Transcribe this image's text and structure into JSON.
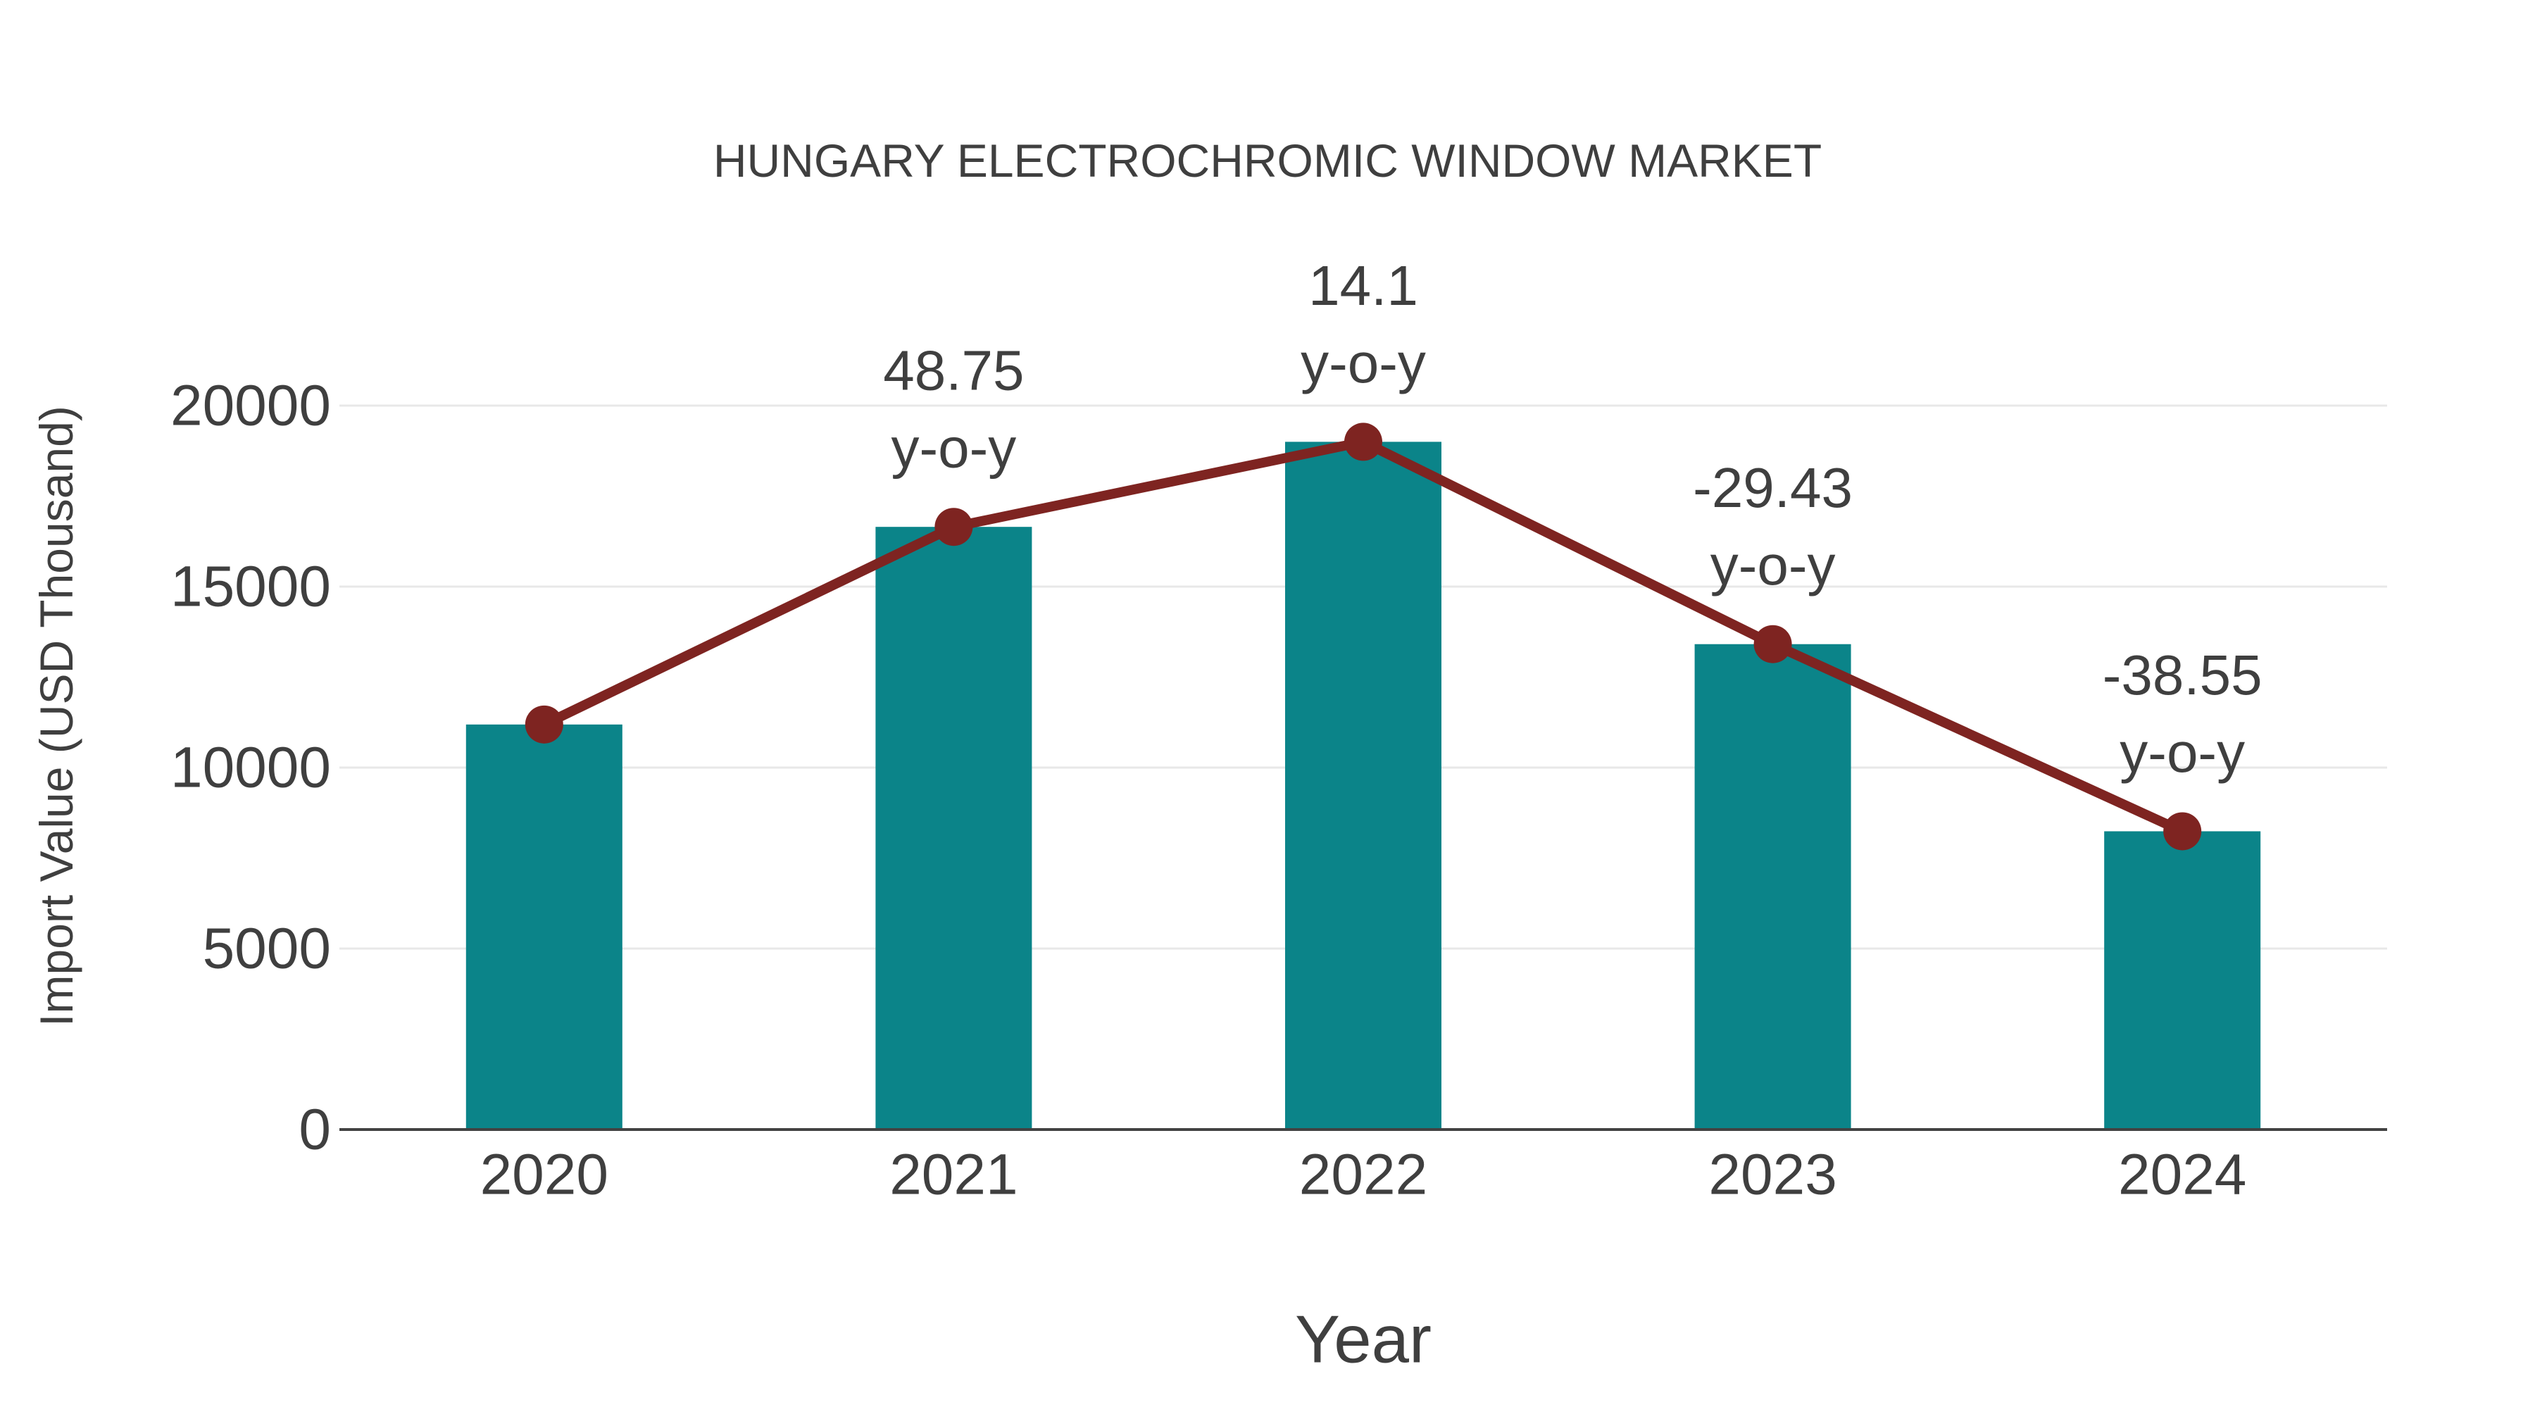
{
  "title": "HUNGARY ELECTROCHROMIC WINDOW MARKET",
  "chart_data": {
    "type": "bar",
    "title": "HUNGARY ELECTROCHROMIC WINDOW MARKET",
    "xlabel": "Year",
    "ylabel": "Import Value (USD Thousand)",
    "categories": [
      "2020",
      "2021",
      "2022",
      "2023",
      "2024"
    ],
    "series": [
      {
        "name": "Import Value (USD Thousand)",
        "type": "bar",
        "values": [
          11190,
          16650,
          19000,
          13410,
          8240
        ]
      },
      {
        "name": "y-o-y change (%)",
        "type": "line-annotation",
        "values": [
          null,
          48.75,
          14.1,
          -29.43,
          -38.55
        ]
      }
    ],
    "annotation_suffix_label": "y-o-y",
    "yticks": [
      0,
      5000,
      10000,
      15000,
      20000
    ],
    "ylim": [
      0,
      20000
    ],
    "grid": "horizontal",
    "legend": "none",
    "colors": {
      "bar": "#0b8489",
      "line": "#7e2421",
      "marker": "#7e2421",
      "grid": "#e8e8e8",
      "axis": "#424242",
      "text": "#3f3f3f"
    }
  }
}
